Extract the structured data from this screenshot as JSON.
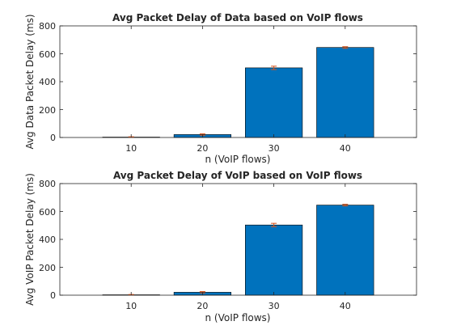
{
  "chart_data": [
    {
      "type": "bar",
      "title": "Avg Packet Delay of Data based on VoIP flows",
      "xlabel": "n (VoIP flows)",
      "ylabel": "Avg Data Packet Delay (ms)",
      "categories": [
        "10",
        "20",
        "30",
        "40"
      ],
      "x": [
        10,
        20,
        30,
        40
      ],
      "values": [
        3,
        21,
        499,
        645
      ],
      "errors": [
        2,
        5,
        12,
        6
      ],
      "xlim": [
        0,
        50
      ],
      "ylim": [
        0,
        800
      ],
      "yticks": [
        "0",
        "200",
        "400",
        "600",
        "800"
      ],
      "grid": false,
      "bar_color": "#0072BD",
      "error_color": "#D95319"
    },
    {
      "type": "bar",
      "title": "Avg Packet Delay of VoIP based on VoIP flows",
      "xlabel": "n (VoIP flows)",
      "ylabel": "Avg VoIP Packet Delay (ms)",
      "categories": [
        "10",
        "20",
        "30",
        "40"
      ],
      "x": [
        10,
        20,
        30,
        40
      ],
      "values": [
        3,
        21,
        503,
        646
      ],
      "errors": [
        2,
        5,
        12,
        6
      ],
      "xlim": [
        0,
        50
      ],
      "ylim": [
        0,
        800
      ],
      "yticks": [
        "0",
        "200",
        "400",
        "600",
        "800"
      ],
      "grid": false,
      "bar_color": "#0072BD",
      "error_color": "#D95319"
    }
  ]
}
